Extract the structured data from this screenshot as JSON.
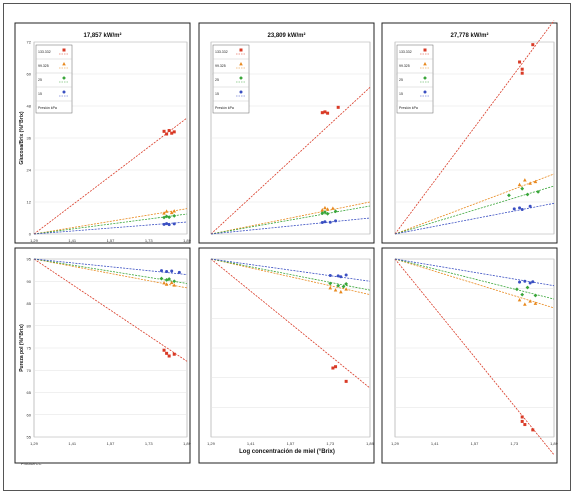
{
  "figure": {
    "shared_xlabel": "Log concentración de miel (°Brix)",
    "footnote": "Procida CC"
  },
  "chart_data": [
    {
      "type": "scatter",
      "title": "17,857 kW/m²",
      "ylabel": "Glucosa/Brix (%/°Brix)",
      "xlabel": "",
      "xlim": [
        1.29,
        1.89
      ],
      "ylim": [
        0,
        72
      ],
      "xticks": [
        "1,29",
        "1,41",
        "1,57",
        "1,73",
        "1,89"
      ],
      "yticks": [
        "0",
        "12",
        "24",
        "36",
        "48",
        "60",
        "72"
      ],
      "legend": {
        "position": "top-left",
        "title": "Presión kPa",
        "entries": [
          "133.332",
          "99.325",
          "25",
          "15"
        ]
      },
      "series": [
        {
          "name": "133.332",
          "color": "#d93a26",
          "marker": "square",
          "points": [
            [
              1.8,
              38.5
            ],
            [
              1.81,
              37.5
            ],
            [
              1.82,
              38.8
            ],
            [
              1.83,
              37.8
            ],
            [
              1.84,
              38.3
            ]
          ],
          "trend": [
            [
              1.29,
              0
            ],
            [
              1.89,
              43.5
            ]
          ]
        },
        {
          "name": "99.325",
          "color": "#e8891e",
          "marker": "tri",
          "points": [
            [
              1.8,
              7.8
            ],
            [
              1.81,
              8.5
            ],
            [
              1.83,
              8.0
            ],
            [
              1.84,
              8.6
            ]
          ],
          "trend": [
            [
              1.29,
              0
            ],
            [
              1.89,
              9.5
            ]
          ]
        },
        {
          "name": "25",
          "color": "#3aa63a",
          "marker": "diamond",
          "points": [
            [
              1.8,
              6.2
            ],
            [
              1.81,
              6.6
            ],
            [
              1.82,
              6.3
            ],
            [
              1.84,
              6.8
            ]
          ],
          "trend": [
            [
              1.29,
              0
            ],
            [
              1.89,
              7.5
            ]
          ]
        },
        {
          "name": "15",
          "color": "#3a4fc2",
          "marker": "circle",
          "points": [
            [
              1.8,
              3.6
            ],
            [
              1.81,
              3.9
            ],
            [
              1.82,
              3.5
            ],
            [
              1.84,
              3.8
            ]
          ],
          "trend": [
            [
              1.29,
              0
            ],
            [
              1.89,
              4.5
            ]
          ]
        }
      ]
    },
    {
      "type": "scatter",
      "title": "23,809 kW/m²",
      "ylabel": "",
      "xlabel": "",
      "xlim": [
        1.29,
        1.89
      ],
      "ylim": [
        0,
        72
      ],
      "xticks": [],
      "yticks": [],
      "legend": {
        "position": "top-left",
        "title": "Presión kPa",
        "entries": [
          "133.332",
          "99.325",
          "25",
          "15"
        ]
      },
      "series": [
        {
          "name": "133.332",
          "color": "#d93a26",
          "marker": "square",
          "points": [
            [
              1.71,
              45.5
            ],
            [
              1.72,
              45.8
            ],
            [
              1.73,
              45.3
            ],
            [
              1.77,
              47.5
            ]
          ],
          "trend": [
            [
              1.29,
              0
            ],
            [
              1.89,
              55
            ]
          ]
        },
        {
          "name": "99.325",
          "color": "#e8891e",
          "marker": "tri",
          "points": [
            [
              1.71,
              9.0
            ],
            [
              1.72,
              9.8
            ],
            [
              1.73,
              9.3
            ],
            [
              1.75,
              9.6
            ]
          ],
          "trend": [
            [
              1.29,
              0
            ],
            [
              1.89,
              12
            ]
          ]
        },
        {
          "name": "25",
          "color": "#3aa63a",
          "marker": "diamond",
          "points": [
            [
              1.71,
              7.8
            ],
            [
              1.72,
              8.2
            ],
            [
              1.73,
              7.6
            ],
            [
              1.76,
              8.5
            ]
          ],
          "trend": [
            [
              1.29,
              0
            ],
            [
              1.89,
              10.5
            ]
          ]
        },
        {
          "name": "15",
          "color": "#3a4fc2",
          "marker": "circle",
          "points": [
            [
              1.71,
              4.3
            ],
            [
              1.72,
              4.6
            ],
            [
              1.74,
              4.4
            ],
            [
              1.76,
              4.9
            ]
          ],
          "trend": [
            [
              1.29,
              0
            ],
            [
              1.89,
              6
            ]
          ]
        }
      ]
    },
    {
      "type": "scatter",
      "title": "27,778 kW/m²",
      "ylabel": "",
      "xlabel": "",
      "xlim": [
        1.29,
        1.89
      ],
      "ylim": [
        0,
        72
      ],
      "xticks": [],
      "yticks": [],
      "legend": {
        "position": "top-left",
        "title": "Presión kPa",
        "entries": [
          "133.332",
          "99.325",
          "25",
          "15"
        ]
      },
      "series": [
        {
          "name": "133.332",
          "color": "#d93a26",
          "marker": "square",
          "points": [
            [
              1.76,
              64.5
            ],
            [
              1.77,
              61.8
            ],
            [
              1.77,
              60.3
            ],
            [
              1.81,
              71
            ]
          ],
          "trend": [
            [
              1.29,
              0
            ],
            [
              1.89,
              80
            ]
          ]
        },
        {
          "name": "99.325",
          "color": "#e8891e",
          "marker": "tri",
          "points": [
            [
              1.76,
              18.5
            ],
            [
              1.78,
              20.2
            ],
            [
              1.8,
              19.0
            ],
            [
              1.82,
              19.6
            ]
          ],
          "trend": [
            [
              1.29,
              0
            ],
            [
              1.89,
              22.5
            ]
          ]
        },
        {
          "name": "25",
          "color": "#3aa63a",
          "marker": "diamond",
          "points": [
            [
              1.72,
              14.5
            ],
            [
              1.77,
              17.0
            ],
            [
              1.79,
              14.8
            ],
            [
              1.83,
              15.8
            ]
          ],
          "trend": [
            [
              1.29,
              0
            ],
            [
              1.89,
              18
            ]
          ]
        },
        {
          "name": "15",
          "color": "#3a4fc2",
          "marker": "circle",
          "points": [
            [
              1.74,
              9.4
            ],
            [
              1.76,
              9.8
            ],
            [
              1.77,
              9.2
            ],
            [
              1.8,
              10.4
            ]
          ],
          "trend": [
            [
              1.29,
              0
            ],
            [
              1.89,
              11.5
            ]
          ]
        }
      ]
    },
    {
      "type": "scatter",
      "title": "",
      "ylabel": "Pureza pol (%/°Brix)",
      "xlabel": "",
      "xlim": [
        1.29,
        1.89
      ],
      "ylim": [
        55,
        95
      ],
      "xticks": [
        "1,29",
        "1,41",
        "1,57",
        "1,73",
        "1,89"
      ],
      "yticks": [
        "55",
        "60",
        "65",
        "70",
        "75",
        "80",
        "85",
        "90",
        "95"
      ],
      "legend": null,
      "series": [
        {
          "name": "133.332",
          "color": "#d93a26",
          "marker": "square",
          "points": [
            [
              1.8,
              74.5
            ],
            [
              1.81,
              73.8
            ],
            [
              1.82,
              73.2
            ],
            [
              1.84,
              73.6
            ]
          ],
          "trend": [
            [
              1.29,
              95
            ],
            [
              1.89,
              72
            ]
          ]
        },
        {
          "name": "99.325",
          "color": "#e8891e",
          "marker": "tri",
          "points": [
            [
              1.8,
              89.6
            ],
            [
              1.81,
              89.3
            ],
            [
              1.83,
              89.7
            ],
            [
              1.84,
              89.1
            ]
          ],
          "trend": [
            [
              1.29,
              95
            ],
            [
              1.89,
              88.5
            ]
          ]
        },
        {
          "name": "25",
          "color": "#3aa63a",
          "marker": "diamond",
          "points": [
            [
              1.79,
              90.6
            ],
            [
              1.81,
              90.3
            ],
            [
              1.82,
              90.5
            ],
            [
              1.84,
              90.0
            ]
          ],
          "trend": [
            [
              1.29,
              95
            ],
            [
              1.89,
              89.5
            ]
          ]
        },
        {
          "name": "15",
          "color": "#3a4fc2",
          "marker": "circle",
          "points": [
            [
              1.79,
              92.4
            ],
            [
              1.81,
              92.2
            ],
            [
              1.83,
              92.3
            ],
            [
              1.86,
              92.0
            ]
          ],
          "trend": [
            [
              1.29,
              95
            ],
            [
              1.89,
              91.5
            ]
          ]
        }
      ]
    },
    {
      "type": "scatter",
      "title": "",
      "ylabel": "",
      "xlabel": "",
      "xlim": [
        1.29,
        1.89
      ],
      "ylim": [
        55,
        95
      ],
      "xticks": [
        "1,29",
        "1,41",
        "1,57",
        "1,73",
        "1,89"
      ],
      "yticks": [],
      "legend": null,
      "series": [
        {
          "name": "133.332",
          "color": "#d93a26",
          "marker": "square",
          "points": [
            [
              1.75,
              70.5
            ],
            [
              1.76,
              70.8
            ],
            [
              1.8,
              67.5
            ]
          ],
          "trend": [
            [
              1.29,
              95
            ],
            [
              1.89,
              66
            ]
          ]
        },
        {
          "name": "99.325",
          "color": "#e8891e",
          "marker": "tri",
          "points": [
            [
              1.74,
              88.5
            ],
            [
              1.76,
              88.0
            ],
            [
              1.78,
              87.6
            ],
            [
              1.8,
              88.2
            ]
          ],
          "trend": [
            [
              1.29,
              95
            ],
            [
              1.89,
              87
            ]
          ]
        },
        {
          "name": "25",
          "color": "#3aa63a",
          "marker": "diamond",
          "points": [
            [
              1.74,
              89.5
            ],
            [
              1.77,
              89.0
            ],
            [
              1.79,
              88.8
            ],
            [
              1.8,
              89.4
            ]
          ],
          "trend": [
            [
              1.29,
              95
            ],
            [
              1.89,
              88
            ]
          ]
        },
        {
          "name": "15",
          "color": "#3a4fc2",
          "marker": "circle",
          "points": [
            [
              1.74,
              91.3
            ],
            [
              1.77,
              91.2
            ],
            [
              1.78,
              91.0
            ],
            [
              1.8,
              91.4
            ]
          ],
          "trend": [
            [
              1.29,
              95
            ],
            [
              1.89,
              90
            ]
          ]
        }
      ]
    },
    {
      "type": "scatter",
      "title": "",
      "ylabel": "",
      "xlabel": "",
      "xlim": [
        1.29,
        1.89
      ],
      "ylim": [
        55,
        95
      ],
      "xticks": [
        "1,29",
        "1,41",
        "1,57",
        "1,73",
        "1,89"
      ],
      "yticks": [],
      "legend": null,
      "series": [
        {
          "name": "133.332",
          "color": "#d93a26",
          "marker": "square",
          "points": [
            [
              1.77,
              59.5
            ],
            [
              1.77,
              58.5
            ],
            [
              1.78,
              57.8
            ],
            [
              1.81,
              56.6
            ]
          ],
          "trend": [
            [
              1.29,
              95
            ],
            [
              1.89,
              51
            ]
          ]
        },
        {
          "name": "99.325",
          "color": "#e8891e",
          "marker": "tri",
          "points": [
            [
              1.76,
              85.8
            ],
            [
              1.78,
              84.8
            ],
            [
              1.8,
              85.5
            ],
            [
              1.82,
              85.0
            ]
          ],
          "trend": [
            [
              1.29,
              95
            ],
            [
              1.89,
              84
            ]
          ]
        },
        {
          "name": "25",
          "color": "#3aa63a",
          "marker": "diamond",
          "points": [
            [
              1.75,
              88.2
            ],
            [
              1.77,
              87.0
            ],
            [
              1.79,
              88.6
            ],
            [
              1.82,
              86.8
            ]
          ],
          "trend": [
            [
              1.29,
              95
            ],
            [
              1.89,
              86
            ]
          ]
        },
        {
          "name": "15",
          "color": "#3a4fc2",
          "marker": "circle",
          "points": [
            [
              1.76,
              89.8
            ],
            [
              1.78,
              90.0
            ],
            [
              1.8,
              89.6
            ],
            [
              1.81,
              89.9
            ]
          ],
          "trend": [
            [
              1.29,
              95
            ],
            [
              1.89,
              89
            ]
          ]
        }
      ]
    }
  ]
}
